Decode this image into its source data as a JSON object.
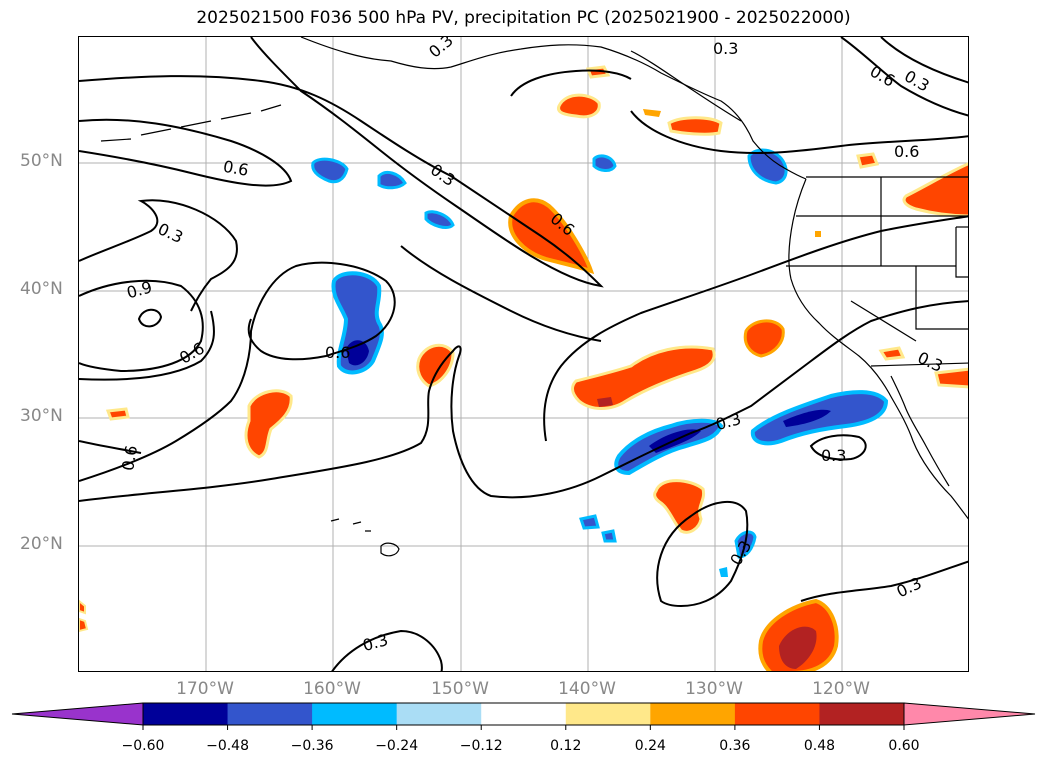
{
  "title": "2025021500 F036 500 hPa PV, precipitation PC (2025021900 - 2025022000)",
  "axes": {
    "lat_labels": [
      "50°N",
      "40°N",
      "30°N",
      "20°N"
    ],
    "lon_labels": [
      "170°W",
      "160°W",
      "150°W",
      "140°W",
      "130°W",
      "120°W"
    ]
  },
  "contour_labels": [
    "0.3",
    "0.6",
    "0.3",
    "0.6",
    "0.9",
    "0.6",
    "0.6",
    "0.6",
    "0.3",
    "0.6",
    "0.3",
    "0.6",
    "0.3",
    "0.3",
    "0.3",
    "0.3",
    "0.3",
    "0.3",
    "0.3"
  ],
  "colorbar": {
    "ticks": [
      "−0.60",
      "−0.48",
      "−0.36",
      "−0.24",
      "−0.12",
      "0.12",
      "0.24",
      "0.36",
      "0.48",
      "0.60"
    ],
    "colors": [
      "#9933cc",
      "#000099",
      "#3355cc",
      "#00bbff",
      "#aaddf5",
      "#ffffff",
      "#ffe88a",
      "#ffa500",
      "#ff4500",
      "#b22222",
      "#ff88aa"
    ]
  },
  "colors": {
    "contour": "#000000",
    "grid": "#b0b0b0",
    "coast": "#000000",
    "axis_label": "#888888"
  }
}
